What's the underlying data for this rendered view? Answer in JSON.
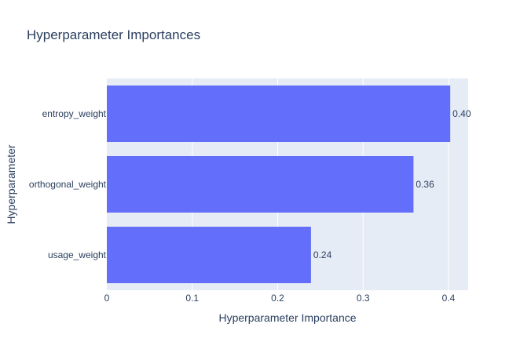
{
  "chart_data": {
    "type": "bar",
    "orientation": "horizontal",
    "title": "Hyperparameter Importances",
    "xlabel": "Hyperparameter Importance",
    "ylabel": "Hyperparameter",
    "categories": [
      "entropy_weight",
      "orthogonal_weight",
      "usage_weight"
    ],
    "values": [
      0.402,
      0.359,
      0.239
    ],
    "value_labels": [
      "0.40",
      "0.36",
      "0.24"
    ],
    "xlim": [
      0,
      0.423
    ],
    "x_ticks": [
      0,
      0.1,
      0.2,
      0.3,
      0.4
    ],
    "x_tick_labels": [
      "0",
      "0.1",
      "0.2",
      "0.3",
      "0.4"
    ],
    "grid": true,
    "colors": {
      "bar": "#636efa",
      "plot_bg": "#e5ecf6",
      "grid": "#ffffff",
      "text": "#2a3f5f"
    }
  }
}
